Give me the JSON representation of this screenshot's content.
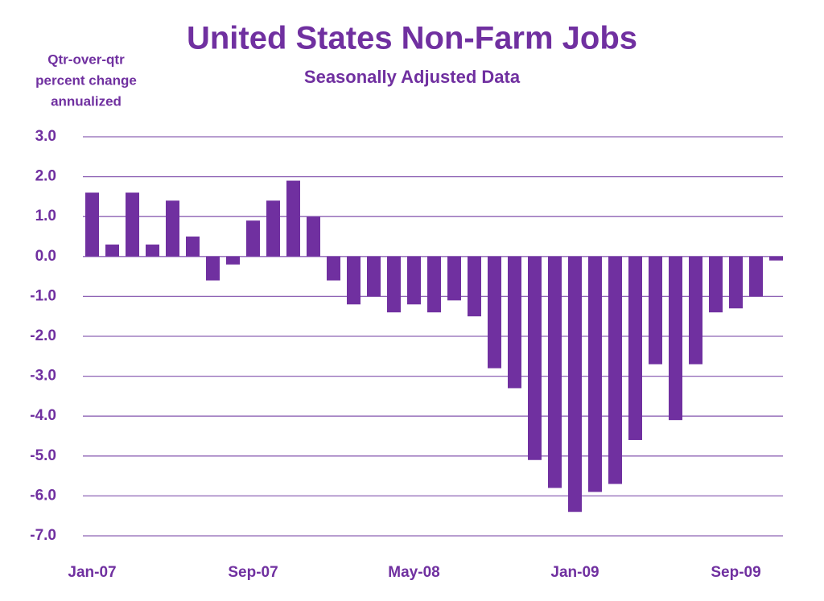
{
  "chart_data": {
    "type": "bar",
    "title": "United States Non-Farm Jobs",
    "subtitle": "Seasonally Adjusted Data",
    "y_label": [
      "Qtr-over-qtr",
      "percent change",
      "annualized"
    ],
    "categories": [
      "Jan-07",
      null,
      null,
      null,
      null,
      null,
      null,
      null,
      "Sep-07",
      null,
      null,
      null,
      null,
      null,
      null,
      null,
      "May-08",
      null,
      null,
      null,
      null,
      null,
      null,
      null,
      "Jan-09",
      null,
      null,
      null,
      null,
      null,
      null,
      null,
      "Sep-09",
      null,
      null
    ],
    "values": [
      1.6,
      0.3,
      1.6,
      0.3,
      1.4,
      0.5,
      -0.6,
      -0.2,
      0.9,
      1.4,
      1.9,
      1.0,
      -0.6,
      -1.2,
      -1.0,
      -1.4,
      -1.2,
      -1.4,
      -1.1,
      -1.5,
      -2.8,
      -3.3,
      -5.1,
      -5.8,
      -6.4,
      -5.9,
      -5.7,
      -4.6,
      -2.7,
      -4.1,
      -2.7,
      -1.4,
      -1.3,
      -1.0,
      -0.1
    ],
    "color": "#7030a0",
    "ylim": [
      -7,
      3
    ],
    "yticks": [
      {
        "value": 3,
        "label": "3.0"
      },
      {
        "value": 2,
        "label": "2.0"
      },
      {
        "value": 1,
        "label": "1.0"
      },
      {
        "value": 0,
        "label": "0.0"
      },
      {
        "value": -1,
        "label": "-1.0"
      },
      {
        "value": -2,
        "label": "-2.0"
      },
      {
        "value": -3,
        "label": "-3.0"
      },
      {
        "value": -4,
        "label": "-4.0"
      },
      {
        "value": -5,
        "label": "-5.0"
      },
      {
        "value": -6,
        "label": "-6.0"
      },
      {
        "value": -7,
        "label": "-7.0"
      }
    ],
    "grid": true
  }
}
